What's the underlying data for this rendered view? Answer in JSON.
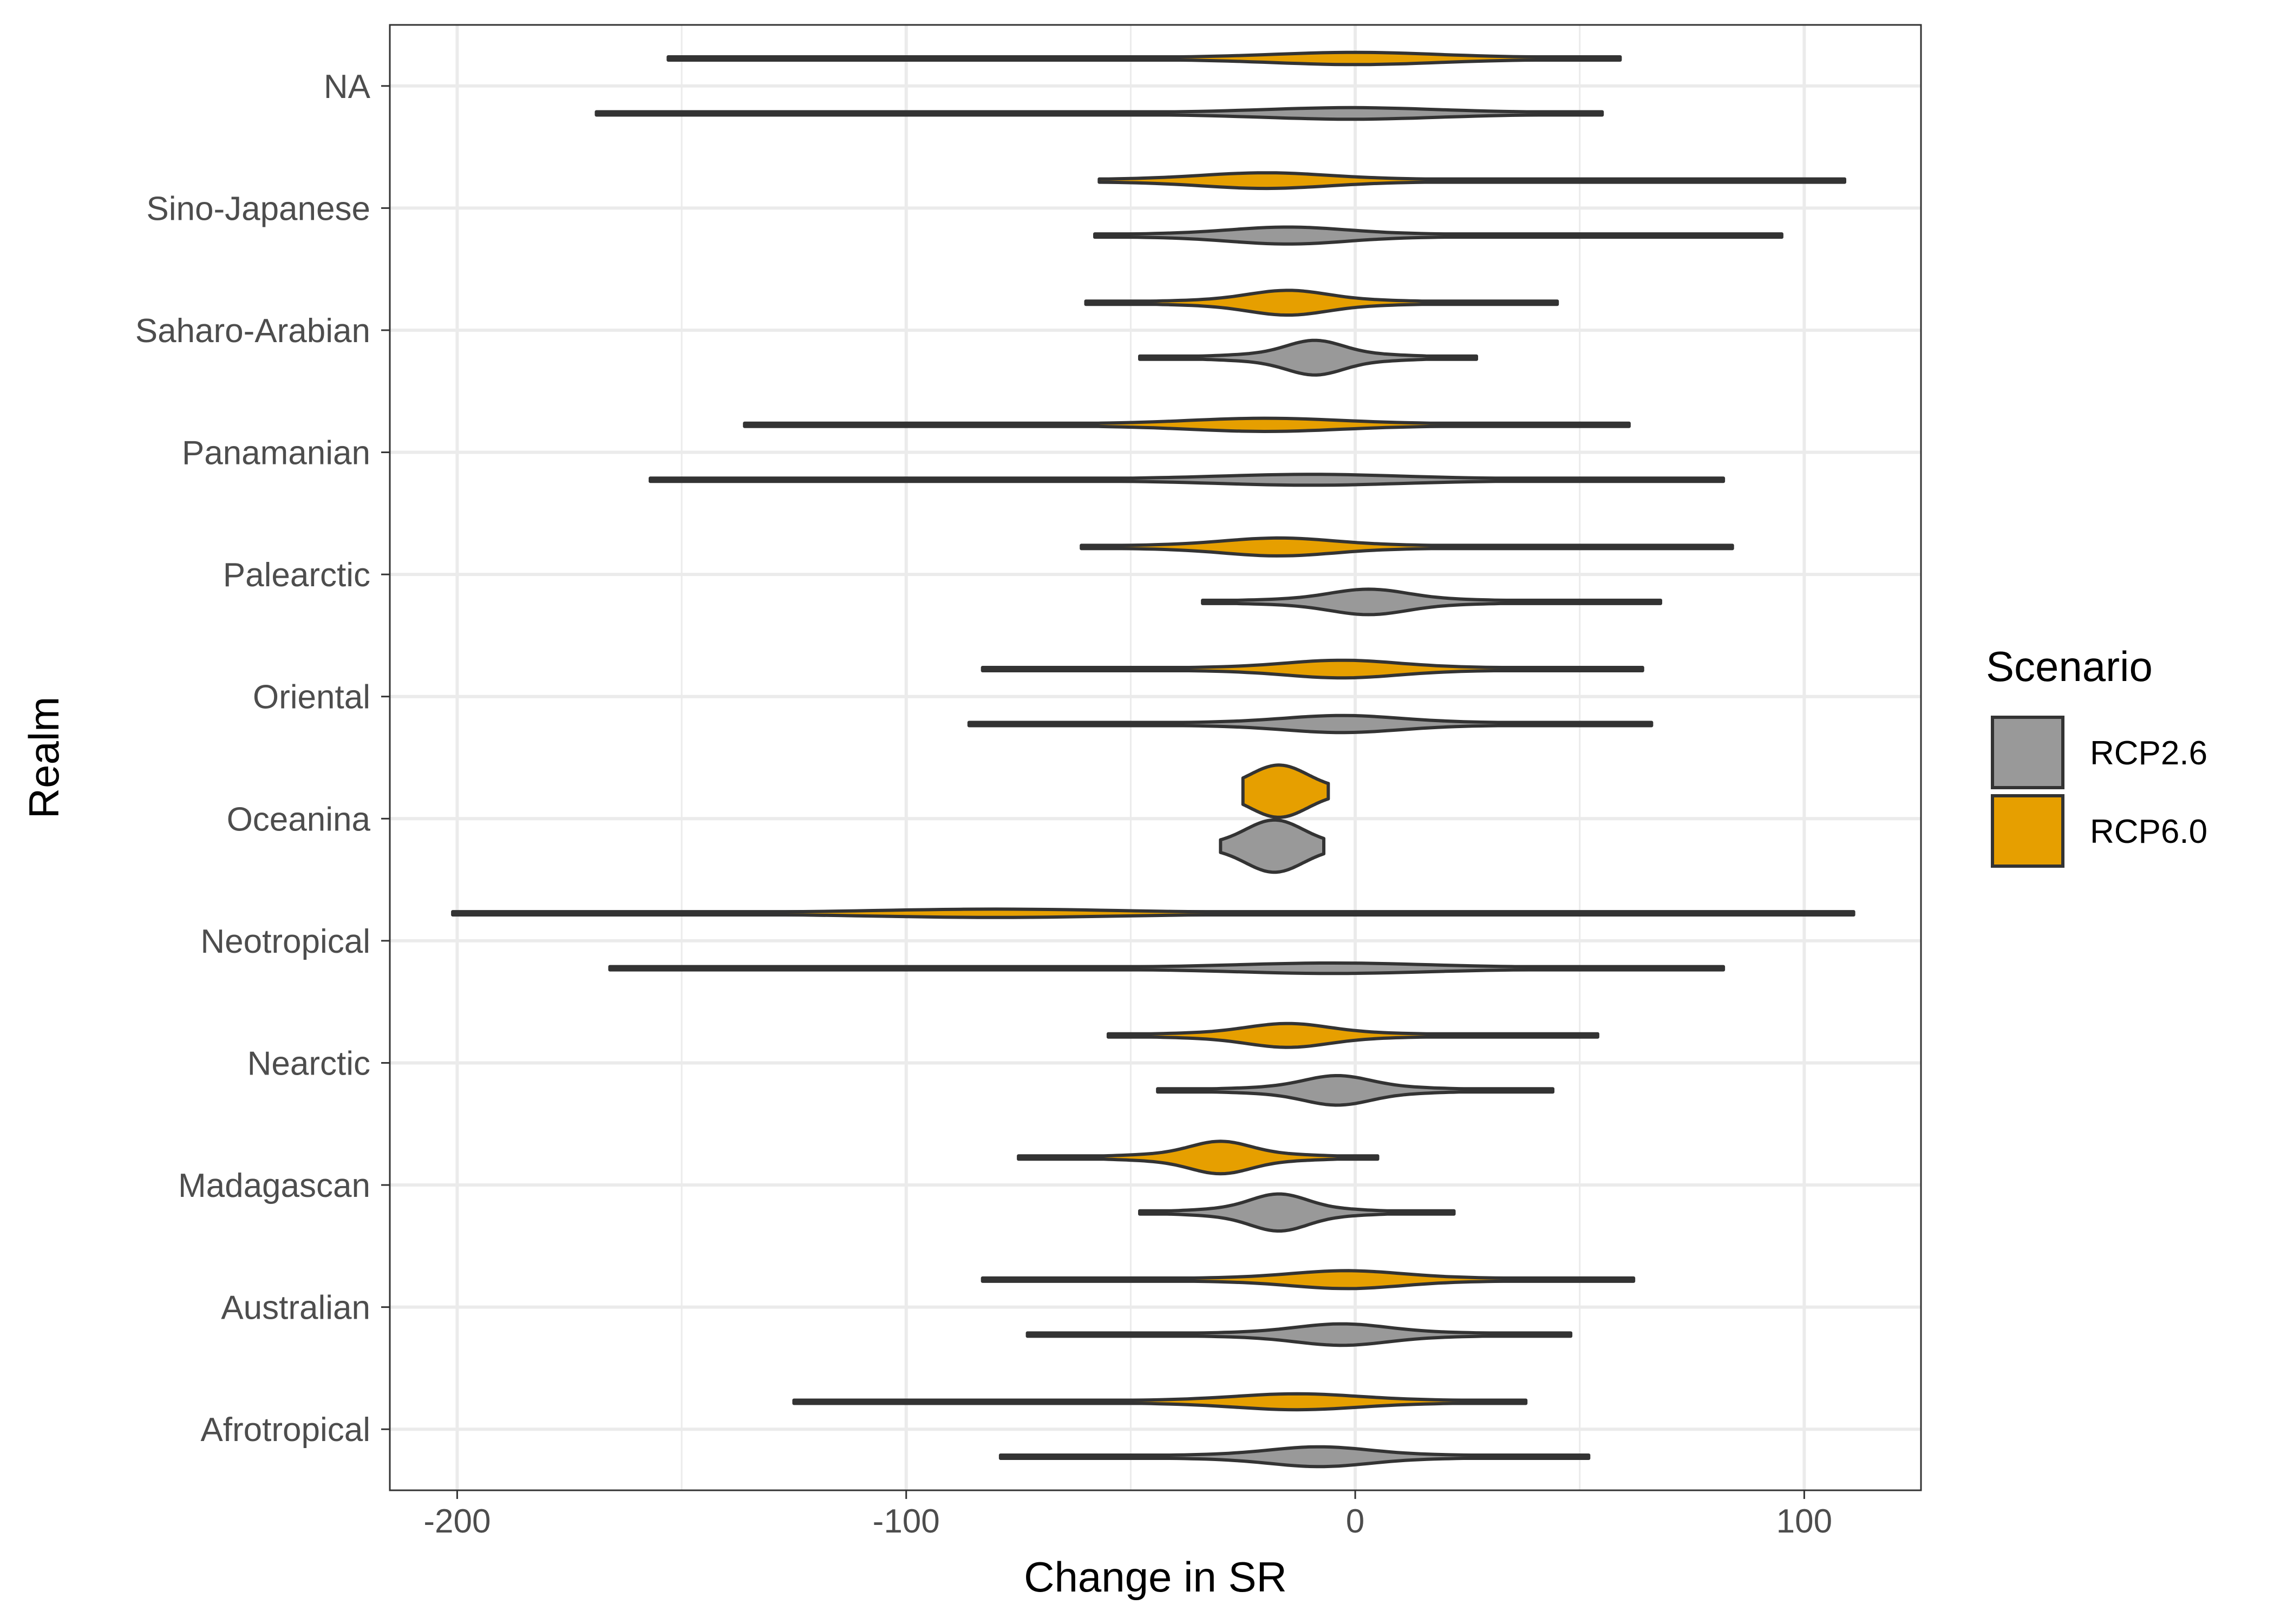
{
  "chart_data": {
    "type": "violin",
    "orientation": "horizontal",
    "xlabel": "Change in SR",
    "ylabel": "Realm",
    "xlim": [
      -215,
      126
    ],
    "x_ticks": [
      -200,
      -100,
      0,
      100
    ],
    "x_tick_labels": [
      "-200",
      "-100",
      "0",
      "100"
    ],
    "grid": true,
    "legend": {
      "title": "Scenario",
      "position": "right",
      "entries": [
        {
          "name": "RCP2.6",
          "color": "#999999"
        },
        {
          "name": "RCP6.0",
          "color": "#E69F00"
        }
      ]
    },
    "categories": [
      "NA",
      "Sino-Japanese",
      "Saharo-Arabian",
      "Panamanian",
      "Palearctic",
      "Oriental",
      "Oceanina",
      "Neotropical",
      "Nearctic",
      "Madagascan",
      "Australian",
      "Afrotropical"
    ],
    "series": [
      {
        "name": "RCP6.0",
        "color": "#E69F00",
        "violins": [
          {
            "category": "NA",
            "min": -153,
            "max": 59,
            "mode": 0
          },
          {
            "category": "Sino-Japanese",
            "min": -57,
            "max": 109,
            "mode": -20
          },
          {
            "category": "Saharo-Arabian",
            "min": -60,
            "max": 45,
            "mode": -15
          },
          {
            "category": "Panamanian",
            "min": -136,
            "max": 61,
            "mode": -20
          },
          {
            "category": "Palearctic",
            "min": -61,
            "max": 84,
            "mode": -17
          },
          {
            "category": "Oriental",
            "min": -83,
            "max": 64,
            "mode": -3
          },
          {
            "category": "Oceanina",
            "min": -25,
            "max": -6,
            "mode": -17
          },
          {
            "category": "Neotropical",
            "min": -201,
            "max": 111,
            "mode": -80
          },
          {
            "category": "Nearctic",
            "min": -55,
            "max": 54,
            "mode": -15
          },
          {
            "category": "Madagascan",
            "min": -75,
            "max": 5,
            "mode": -30
          },
          {
            "category": "Australian",
            "min": -83,
            "max": 62,
            "mode": -2
          },
          {
            "category": "Afrotropical",
            "min": -125,
            "max": 38,
            "mode": -13
          }
        ]
      },
      {
        "name": "RCP2.6",
        "color": "#999999",
        "violins": [
          {
            "category": "NA",
            "min": -169,
            "max": 55,
            "mode": -1
          },
          {
            "category": "Sino-Japanese",
            "min": -58,
            "max": 95,
            "mode": -15
          },
          {
            "category": "Saharo-Arabian",
            "min": -48,
            "max": 27,
            "mode": -9
          },
          {
            "category": "Panamanian",
            "min": -157,
            "max": 82,
            "mode": -10
          },
          {
            "category": "Palearctic",
            "min": -34,
            "max": 68,
            "mode": 3
          },
          {
            "category": "Oriental",
            "min": -86,
            "max": 66,
            "mode": -3
          },
          {
            "category": "Oceanina",
            "min": -30,
            "max": -7,
            "mode": -18
          },
          {
            "category": "Neotropical",
            "min": -166,
            "max": 82,
            "mode": -5
          },
          {
            "category": "Nearctic",
            "min": -44,
            "max": 44,
            "mode": -4
          },
          {
            "category": "Madagascan",
            "min": -48,
            "max": 22,
            "mode": -17
          },
          {
            "category": "Australian",
            "min": -73,
            "max": 48,
            "mode": -3
          },
          {
            "category": "Afrotropical",
            "min": -79,
            "max": 52,
            "mode": -8
          }
        ]
      }
    ]
  }
}
